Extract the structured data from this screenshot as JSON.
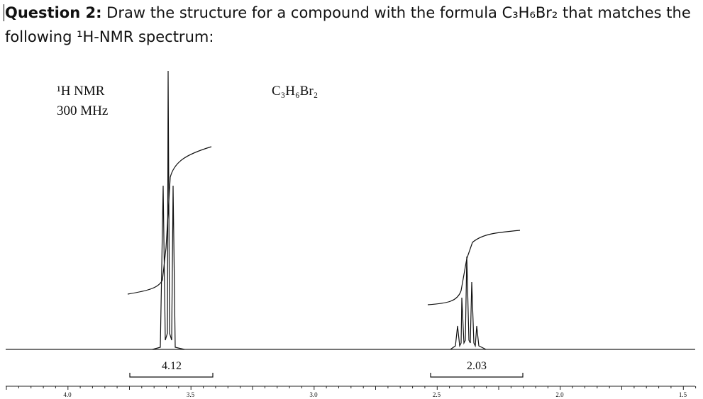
{
  "question": {
    "label": "Question 2:",
    "line1": "Draw the structure for a compound with the formula C₃H₆Br₂ that matches the",
    "line2": "following ¹H-NMR spectrum:"
  },
  "spectrum": {
    "nucleus": "¹H NMR",
    "frequency": "300 MHz",
    "formula": "C₃H₆Br₂",
    "integrals": [
      "4.12",
      "2.03"
    ],
    "axis_labels": [
      "4.0",
      "3.5",
      "3.0",
      "2.5",
      "2.0",
      "1.5"
    ]
  }
}
